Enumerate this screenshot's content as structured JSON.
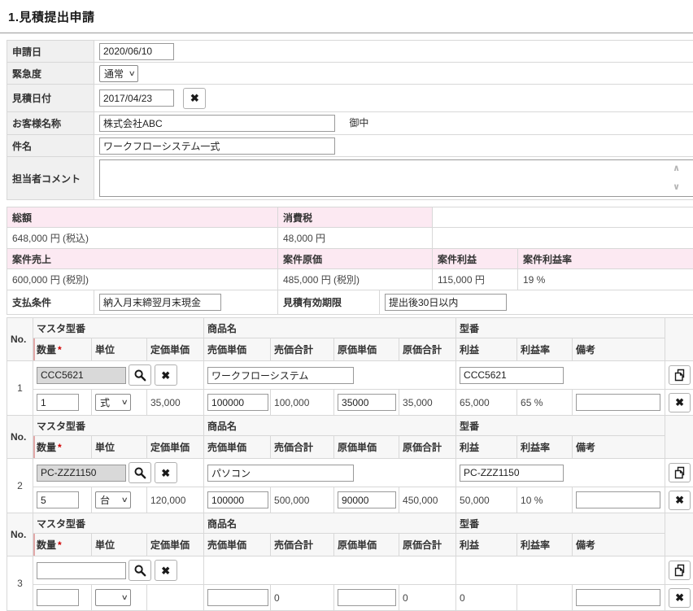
{
  "page": {
    "title": "1.見積提出申請"
  },
  "icons": {
    "clear": "✖",
    "search": "magnifier",
    "copy": "copy-pages",
    "select_arrow": "∨",
    "scroll_up": "∧",
    "scroll_down": "∨"
  },
  "form": {
    "application_date": {
      "label": "申請日",
      "value": "2020/06/10"
    },
    "urgency": {
      "label": "緊急度",
      "value": "通常"
    },
    "quote_date": {
      "label": "見積日付",
      "value": "2017/04/23"
    },
    "customer": {
      "label": "お客様名称",
      "value": "株式会社ABC",
      "suffix": "御中"
    },
    "subject": {
      "label": "件名",
      "value": "ワークフローシステム一式"
    },
    "comment": {
      "label": "担当者コメント",
      "value": ""
    }
  },
  "totals": {
    "total": {
      "label": "総額",
      "value": "648,000 円 (税込)"
    },
    "tax": {
      "label": "消費税",
      "value": "48,000 円"
    }
  },
  "project": {
    "sales": {
      "label": "案件売上",
      "value": "600,000 円 (税別)"
    },
    "cost": {
      "label": "案件原価",
      "value": "485,000 円 (税別)"
    },
    "profit": {
      "label": "案件利益",
      "value": "115,000 円"
    },
    "profit_rate": {
      "label": "案件利益率",
      "value": "19 %"
    }
  },
  "terms": {
    "payment": {
      "label": "支払条件",
      "value": "納入月末締翌月末現金"
    },
    "validity": {
      "label": "見積有効期限",
      "value": "提出後30日以内"
    }
  },
  "items_table": {
    "headers": {
      "no": "No.",
      "master": "マスタ型番",
      "product": "商品名",
      "model": "型番",
      "qty": "数量",
      "required_mark": "*",
      "unit": "単位",
      "list_price": "定価単価",
      "sale_price": "売価単価",
      "sale_total": "売価合計",
      "cost_price": "原価単価",
      "cost_total": "原価合計",
      "profit": "利益",
      "profit_rate": "利益率",
      "remarks": "備考"
    },
    "items": [
      {
        "no": "1",
        "master": "CCC5621",
        "product": "ワークフローシステム",
        "model": "CCC5621",
        "qty": "1",
        "unit": "式",
        "list_price": "35,000",
        "sale_price": "100000",
        "sale_total": "100,000",
        "cost_price": "35000",
        "cost_total": "35,000",
        "profit": "65,000",
        "profit_rate": "65 %",
        "remarks": ""
      },
      {
        "no": "2",
        "master": "PC-ZZZ1150",
        "product": "パソコン",
        "model": "PC-ZZZ1150",
        "qty": "5",
        "unit": "台",
        "list_price": "120,000",
        "sale_price": "100000",
        "sale_total": "500,000",
        "cost_price": "90000",
        "cost_total": "450,000",
        "profit": "50,000",
        "profit_rate": "10 %",
        "remarks": ""
      },
      {
        "no": "3",
        "master": "",
        "product": null,
        "model": null,
        "qty": "",
        "unit": "",
        "list_price": "",
        "sale_price": "",
        "sale_total": "0",
        "cost_price": "",
        "cost_total": "0",
        "profit": "0",
        "profit_rate": "",
        "remarks": ""
      }
    ]
  }
}
